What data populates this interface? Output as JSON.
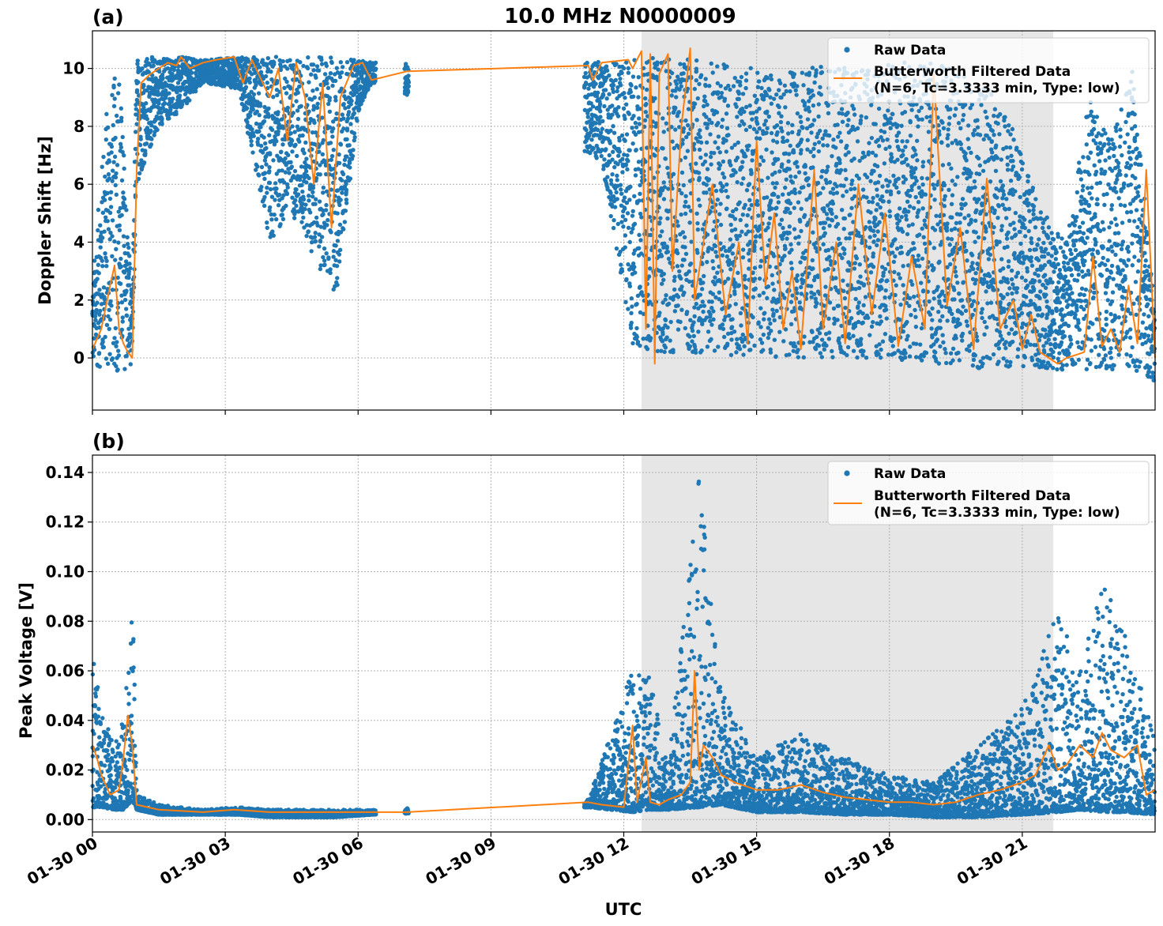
{
  "figure": {
    "title": "10.0 MHz N0000009",
    "xlabel": "UTC",
    "x_tick_labels": [
      "01-30 00",
      "01-30 03",
      "01-30 06",
      "01-30 09",
      "01-30 12",
      "01-30 15",
      "01-30 18",
      "01-30 21"
    ],
    "legend": {
      "raw_label": "Raw Data",
      "filtered_label_line1": "Butterworth Filtered Data",
      "filtered_label_line2": "(N=6, Tc=3.3333 min, Type: low)"
    },
    "colors": {
      "raw": "#1f77b4",
      "filtered": "#ff7f0e",
      "shade": "#e6e6e6",
      "grid": "#b0b0b0"
    }
  },
  "chart_data": [
    {
      "type": "scatter",
      "panel_label": "(a)",
      "ylabel": "Doppler Shift [Hz]",
      "x_unit": "hours UTC on 01-30",
      "xlim": [
        0,
        24
      ],
      "ylim": [
        -1.8,
        11.3
      ],
      "y_ticks": [
        "0",
        "2",
        "4",
        "6",
        "8",
        "10"
      ],
      "grid": true,
      "legend_position": "upper right",
      "shaded_interval_hours": [
        12.4,
        21.7
      ],
      "series": [
        {
          "name": "Raw Data",
          "style": "points",
          "envelope": [
            {
              "x": 0.0,
              "low": -0.3,
              "high": 2.5
            },
            {
              "x": 0.3,
              "low": -0.4,
              "high": 8.5
            },
            {
              "x": 0.6,
              "low": -0.6,
              "high": 10.3
            },
            {
              "x": 0.9,
              "low": -0.2,
              "high": 2.0
            },
            {
              "x": 1.0,
              "low": 6.0,
              "high": 10.4
            },
            {
              "x": 1.5,
              "low": 8.0,
              "high": 10.4
            },
            {
              "x": 2.0,
              "low": 8.5,
              "high": 10.4
            },
            {
              "x": 2.5,
              "low": 9.5,
              "high": 10.3
            },
            {
              "x": 3.3,
              "low": 9.3,
              "high": 10.4
            },
            {
              "x": 4.0,
              "low": 4.0,
              "high": 10.4
            },
            {
              "x": 4.5,
              "low": 5.0,
              "high": 10.4
            },
            {
              "x": 5.0,
              "low": 3.5,
              "high": 10.4
            },
            {
              "x": 5.5,
              "low": 2.0,
              "high": 10.4
            },
            {
              "x": 6.0,
              "low": 8.5,
              "high": 10.3
            },
            {
              "x": 6.3,
              "low": 9.5,
              "high": 10.2
            },
            {
              "x": 11.2,
              "low": 7.0,
              "high": 10.3
            },
            {
              "x": 11.5,
              "low": 6.8,
              "high": 10.2
            },
            {
              "x": 12.2,
              "low": 0.4,
              "high": 10.4
            },
            {
              "x": 12.7,
              "low": 0.2,
              "high": 10.4
            },
            {
              "x": 13.5,
              "low": 0.1,
              "high": 10.4
            },
            {
              "x": 14.5,
              "low": 0.1,
              "high": 10.2
            },
            {
              "x": 15.5,
              "low": 0.0,
              "high": 9.8
            },
            {
              "x": 16.5,
              "low": 0.0,
              "high": 10.1
            },
            {
              "x": 17.5,
              "low": 0.0,
              "high": 10.0
            },
            {
              "x": 18.5,
              "low": -0.1,
              "high": 10.3
            },
            {
              "x": 19.5,
              "low": -0.3,
              "high": 10.0
            },
            {
              "x": 20.5,
              "low": -0.4,
              "high": 9.0
            },
            {
              "x": 21.0,
              "low": -0.3,
              "high": 7.0
            },
            {
              "x": 21.5,
              "low": -0.4,
              "high": 5.0
            },
            {
              "x": 22.0,
              "low": -0.4,
              "high": 4.0
            },
            {
              "x": 22.5,
              "low": -0.4,
              "high": 9.0
            },
            {
              "x": 23.0,
              "low": -0.4,
              "high": 7.5
            },
            {
              "x": 23.5,
              "low": -0.4,
              "high": 10.0
            },
            {
              "x": 24.0,
              "low": -0.8,
              "high": 1.5
            }
          ]
        },
        {
          "name": "Butterworth Filtered Data",
          "style": "line",
          "x": [
            0.0,
            0.2,
            0.4,
            0.5,
            0.6,
            0.7,
            0.8,
            0.9,
            1.0,
            1.1,
            1.3,
            1.5,
            1.7,
            1.9,
            2.0,
            2.2,
            2.5,
            2.8,
            3.2,
            3.4,
            3.6,
            4.0,
            4.2,
            4.4,
            4.6,
            4.8,
            5.0,
            5.2,
            5.4,
            5.6,
            5.9,
            6.1,
            6.3,
            7.1,
            11.2,
            11.3,
            11.5,
            12.1,
            12.2,
            12.4,
            12.5,
            12.6,
            12.7,
            12.8,
            13.0,
            13.1,
            13.3,
            13.5,
            13.6,
            14.0,
            14.3,
            14.6,
            14.8,
            15.0,
            15.2,
            15.4,
            15.6,
            15.8,
            16.0,
            16.3,
            16.5,
            16.8,
            17.0,
            17.3,
            17.6,
            17.9,
            18.2,
            18.5,
            18.8,
            19.0,
            19.3,
            19.6,
            19.9,
            20.2,
            20.5,
            20.8,
            21.0,
            21.2,
            21.4,
            21.6,
            21.8,
            22.0,
            22.2,
            22.4,
            22.6,
            22.8,
            23.0,
            23.2,
            23.4,
            23.6,
            23.8,
            24.0
          ],
          "y": [
            0.3,
            1.0,
            2.5,
            3.2,
            1.0,
            0.5,
            0.2,
            0.0,
            6.5,
            9.5,
            9.8,
            10.0,
            10.2,
            10.1,
            10.4,
            10.0,
            10.2,
            10.3,
            10.4,
            9.5,
            10.3,
            9.0,
            10.0,
            7.5,
            10.2,
            9.0,
            6.0,
            9.5,
            4.5,
            9.0,
            10.1,
            10.2,
            9.6,
            9.9,
            10.1,
            9.6,
            10.2,
            10.3,
            10.0,
            10.6,
            1.0,
            10.5,
            -0.2,
            9.8,
            10.5,
            3.0,
            8.0,
            10.7,
            2.0,
            6.0,
            1.5,
            4.0,
            0.5,
            7.5,
            2.5,
            5.0,
            1.0,
            3.0,
            0.3,
            6.5,
            1.0,
            4.0,
            0.5,
            6.0,
            1.5,
            5.0,
            0.4,
            3.5,
            1.0,
            9.8,
            1.8,
            4.5,
            0.3,
            6.2,
            1.0,
            2.0,
            0.3,
            1.5,
            0.2,
            0.0,
            -0.2,
            0.0,
            0.1,
            0.2,
            3.5,
            0.4,
            1.0,
            0.2,
            2.5,
            0.5,
            6.5,
            0.0
          ]
        }
      ]
    },
    {
      "type": "scatter",
      "panel_label": "(b)",
      "ylabel": "Peak Voltage [V]",
      "x_unit": "hours UTC on 01-30",
      "xlim": [
        0,
        24
      ],
      "ylim": [
        -0.005,
        0.147
      ],
      "y_ticks": [
        "0.00",
        "0.02",
        "0.04",
        "0.06",
        "0.08",
        "0.10",
        "0.12",
        "0.14"
      ],
      "grid": true,
      "legend_position": "upper right",
      "shaded_interval_hours": [
        12.4,
        21.7
      ],
      "series": [
        {
          "name": "Raw Data",
          "style": "points",
          "envelope": [
            {
              "x": 0.0,
              "low": 0.005,
              "high": 0.068
            },
            {
              "x": 0.2,
              "low": 0.005,
              "high": 0.045
            },
            {
              "x": 0.5,
              "low": 0.004,
              "high": 0.03
            },
            {
              "x": 0.7,
              "low": 0.004,
              "high": 0.04
            },
            {
              "x": 0.8,
              "low": 0.006,
              "high": 0.06
            },
            {
              "x": 0.9,
              "low": 0.008,
              "high": 0.102
            },
            {
              "x": 1.0,
              "low": 0.004,
              "high": 0.01
            },
            {
              "x": 1.5,
              "low": 0.002,
              "high": 0.006
            },
            {
              "x": 2.5,
              "low": 0.002,
              "high": 0.004
            },
            {
              "x": 3.3,
              "low": 0.002,
              "high": 0.005
            },
            {
              "x": 4.0,
              "low": 0.001,
              "high": 0.004
            },
            {
              "x": 5.5,
              "low": 0.001,
              "high": 0.004
            },
            {
              "x": 6.3,
              "low": 0.002,
              "high": 0.004
            },
            {
              "x": 11.2,
              "low": 0.005,
              "high": 0.008
            },
            {
              "x": 12.2,
              "low": 0.003,
              "high": 0.061
            },
            {
              "x": 12.6,
              "low": 0.004,
              "high": 0.057
            },
            {
              "x": 13.0,
              "low": 0.004,
              "high": 0.02
            },
            {
              "x": 13.7,
              "low": 0.005,
              "high": 0.14
            },
            {
              "x": 14.2,
              "low": 0.006,
              "high": 0.052
            },
            {
              "x": 15.0,
              "low": 0.003,
              "high": 0.025
            },
            {
              "x": 16.0,
              "low": 0.003,
              "high": 0.035
            },
            {
              "x": 17.0,
              "low": 0.002,
              "high": 0.025
            },
            {
              "x": 18.0,
              "low": 0.002,
              "high": 0.018
            },
            {
              "x": 19.0,
              "low": 0.001,
              "high": 0.015
            },
            {
              "x": 20.0,
              "low": 0.001,
              "high": 0.03
            },
            {
              "x": 21.0,
              "low": 0.002,
              "high": 0.045
            },
            {
              "x": 21.8,
              "low": 0.003,
              "high": 0.084
            },
            {
              "x": 22.3,
              "low": 0.004,
              "high": 0.06
            },
            {
              "x": 22.8,
              "low": 0.003,
              "high": 0.098
            },
            {
              "x": 23.3,
              "low": 0.003,
              "high": 0.075
            },
            {
              "x": 24.0,
              "low": 0.002,
              "high": 0.035
            }
          ]
        },
        {
          "name": "Butterworth Filtered Data",
          "style": "line",
          "x": [
            0.0,
            0.1,
            0.2,
            0.4,
            0.6,
            0.7,
            0.8,
            0.9,
            1.0,
            1.5,
            2.5,
            3.2,
            4.0,
            5.0,
            6.0,
            7.1,
            11.2,
            11.5,
            12.0,
            12.2,
            12.3,
            12.5,
            12.6,
            12.8,
            13.0,
            13.3,
            13.5,
            13.6,
            13.7,
            13.8,
            14.0,
            14.2,
            14.5,
            15.0,
            15.5,
            16.0,
            16.5,
            17.0,
            17.5,
            18.0,
            18.5,
            19.0,
            19.5,
            20.0,
            20.5,
            21.0,
            21.3,
            21.6,
            21.8,
            22.0,
            22.3,
            22.6,
            22.8,
            23.0,
            23.3,
            23.6,
            23.8,
            24.0
          ],
          "y": [
            0.03,
            0.025,
            0.018,
            0.01,
            0.012,
            0.025,
            0.042,
            0.03,
            0.006,
            0.004,
            0.003,
            0.004,
            0.003,
            0.003,
            0.003,
            0.003,
            0.007,
            0.006,
            0.005,
            0.038,
            0.007,
            0.025,
            0.007,
            0.006,
            0.008,
            0.01,
            0.015,
            0.06,
            0.02,
            0.03,
            0.025,
            0.018,
            0.015,
            0.012,
            0.012,
            0.014,
            0.011,
            0.009,
            0.008,
            0.007,
            0.007,
            0.006,
            0.007,
            0.01,
            0.012,
            0.015,
            0.018,
            0.03,
            0.02,
            0.022,
            0.03,
            0.025,
            0.035,
            0.028,
            0.025,
            0.03,
            0.01,
            0.012
          ]
        }
      ]
    }
  ]
}
